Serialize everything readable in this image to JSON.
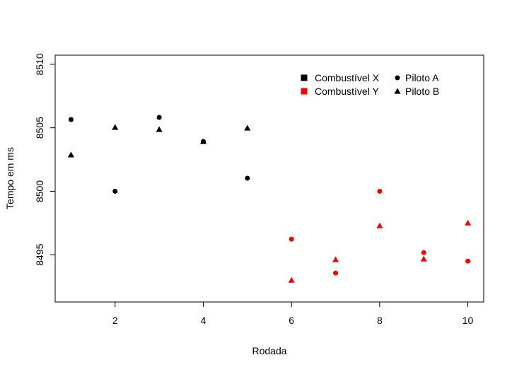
{
  "chart_data": {
    "type": "scatter",
    "x_label": "Rodada",
    "y_label": "Tempo em ms",
    "x": [
      1,
      2,
      3,
      4,
      5,
      6,
      7,
      8,
      9,
      10
    ],
    "series": [
      {
        "name": "Piloto A",
        "marker": "circle",
        "colors": [
          "#000000",
          "#000000",
          "#000000",
          "#000000",
          "#000000",
          "#ff0000",
          "#ff0000",
          "#ff0000",
          "#ff0000",
          "#ff0000"
        ],
        "values": [
          8505.65,
          8500.0,
          8505.82,
          8503.92,
          8501.03,
          8496.23,
          8493.56,
          8500.0,
          8495.17,
          8494.5
        ]
      },
      {
        "name": "Piloto B",
        "marker": "triangle",
        "colors": [
          "#000000",
          "#000000",
          "#000000",
          "#000000",
          "#000000",
          "#ff0000",
          "#ff0000",
          "#ff0000",
          "#ff0000",
          "#ff0000"
        ],
        "values": [
          8502.87,
          8505.04,
          8504.87,
          8503.92,
          8504.98,
          8493.0,
          8494.62,
          8497.29,
          8494.67,
          8497.51
        ]
      }
    ],
    "groups": [
      {
        "name": "Combustível X",
        "color": "#000000"
      },
      {
        "name": "Combustível Y",
        "color": "#ff0000"
      }
    ],
    "xlim": [
      0.64,
      10.36
    ],
    "ylim": [
      8491.28,
      8510.72
    ],
    "xticks": [
      2,
      4,
      6,
      8,
      10
    ],
    "yticks": [
      8495,
      8500,
      8505,
      8510
    ],
    "legend_position": "top-right"
  }
}
